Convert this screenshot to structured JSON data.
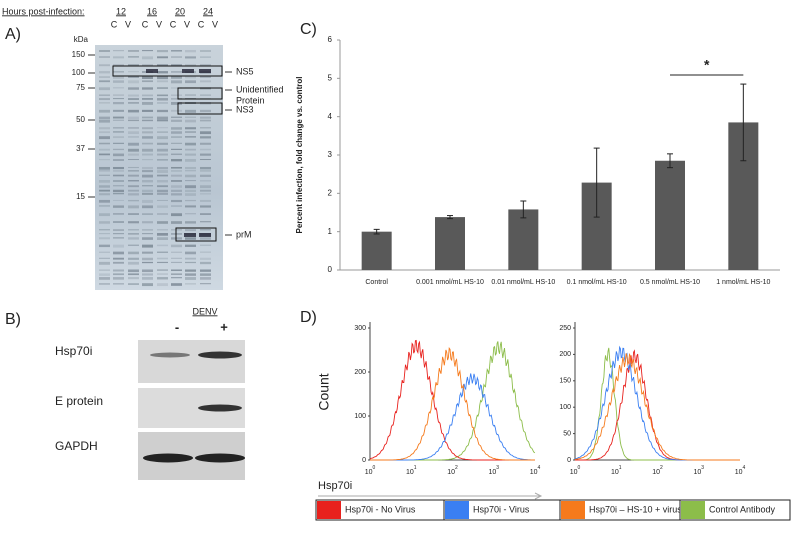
{
  "panel_a": {
    "label": "A)",
    "hours_label": "Hours post-infection:",
    "hours": [
      "12",
      "16",
      "20",
      "24"
    ],
    "lanes": [
      "C",
      "V"
    ],
    "kda_label": "kDa",
    "markers": [
      "150",
      "100",
      "75",
      "50",
      "37",
      "15"
    ],
    "proteins": [
      [
        "NS5"
      ],
      [
        "Unidentified",
        "Protein"
      ],
      [
        "NS3"
      ],
      [
        "prM"
      ]
    ]
  },
  "panel_b": {
    "label": "B)",
    "treatment": "DENV",
    "lanes": [
      "-",
      "+"
    ],
    "rows": [
      "Hsp70i",
      "E protein",
      "GAPDH"
    ]
  },
  "panel_c_label": "C)",
  "chart_data": {
    "type": "bar",
    "y_label": "Percent infection, fold change vs. control",
    "categories": [
      "Control",
      "0.001 nmol/mL HS-10",
      "0.01 nmol/mL HS-10",
      "0.1 nmol/mL HS-10",
      "0.5 nmol/mL HS-10",
      "1 nmol/mL HS-10"
    ],
    "values": [
      1.0,
      1.38,
      1.58,
      2.28,
      2.85,
      3.85
    ],
    "errors": [
      0.06,
      0.04,
      0.22,
      0.9,
      0.18,
      1.0
    ],
    "color": "#595959",
    "ylim": [
      0,
      6
    ],
    "yticks": [
      0,
      1,
      2,
      3,
      4,
      5,
      6
    ],
    "significance": "*"
  },
  "panel_d": {
    "label": "D)",
    "y_label": "Count",
    "x_label": "Hsp70i",
    "plots": [
      {
        "yticks": [
          "0",
          "100",
          "200",
          "300"
        ]
      },
      {
        "yticks": [
          "0",
          "50",
          "100",
          "150",
          "200",
          "250"
        ]
      }
    ],
    "x_tick_base": "10",
    "x_tick_exponents": [
      "0",
      "1",
      "2",
      "3",
      "4"
    ],
    "legend": [
      {
        "name": "Hsp70i - No Virus",
        "color": "#e8211d"
      },
      {
        "name": "Hsp70i - Virus",
        "color": "#3a7ff2"
      },
      {
        "name": "Hsp70i – HS-10 + virus",
        "color": "#f57a1c"
      },
      {
        "name": "Control Antibody",
        "color": "#8cbd4a"
      }
    ]
  }
}
